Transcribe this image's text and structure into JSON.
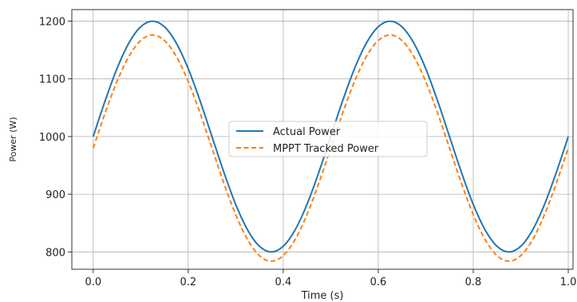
{
  "chart_data": {
    "type": "line",
    "title": "",
    "xlabel": "Time (s)",
    "ylabel": "Power (W)",
    "xlim": [
      -0.045,
      1.01
    ],
    "ylim": [
      770,
      1220
    ],
    "x_ticks": [
      "0.0",
      "0.2",
      "0.4",
      "0.6",
      "0.8",
      "1.0"
    ],
    "x_tick_values": [
      0.0,
      0.2,
      0.4,
      0.6,
      0.8,
      1.0
    ],
    "y_ticks": [
      "800",
      "900",
      "1000",
      "1100",
      "1200"
    ],
    "y_tick_values": [
      800,
      900,
      1000,
      1100,
      1200
    ],
    "grid": true,
    "legend_position": "center",
    "x": [
      0.0,
      0.025,
      0.05,
      0.075,
      0.1,
      0.125,
      0.15,
      0.175,
      0.2,
      0.225,
      0.25,
      0.275,
      0.3,
      0.325,
      0.35,
      0.375,
      0.4,
      0.425,
      0.45,
      0.475,
      0.5,
      0.525,
      0.55,
      0.575,
      0.6,
      0.625,
      0.65,
      0.675,
      0.7,
      0.725,
      0.75,
      0.775,
      0.8,
      0.825,
      0.85,
      0.875,
      0.9,
      0.925,
      0.95,
      0.975,
      1.0
    ],
    "series": [
      {
        "name": "Actual Power",
        "color": "#1f77b4",
        "dash": "solid",
        "values": [
          1000.0,
          1061.8,
          1117.6,
          1161.8,
          1190.2,
          1200.0,
          1190.2,
          1161.8,
          1117.6,
          1061.8,
          1000.0,
          938.2,
          882.4,
          838.2,
          809.8,
          800.0,
          809.8,
          838.2,
          882.4,
          938.2,
          1000.0,
          1061.8,
          1117.6,
          1161.8,
          1190.2,
          1200.0,
          1190.2,
          1161.8,
          1117.6,
          1061.8,
          1000.0,
          938.2,
          882.4,
          838.2,
          809.8,
          800.0,
          809.8,
          838.2,
          882.4,
          938.2,
          1000.0
        ]
      },
      {
        "name": "MPPT Tracked Power",
        "color": "#ff7f0e",
        "dash": "dashed",
        "values": [
          980.0,
          1040.6,
          1095.3,
          1138.6,
          1166.4,
          1176.0,
          1166.4,
          1138.6,
          1095.3,
          1040.6,
          980.0,
          919.4,
          864.7,
          821.4,
          793.6,
          784.0,
          793.6,
          821.4,
          864.7,
          919.4,
          980.0,
          1040.6,
          1095.3,
          1138.6,
          1166.4,
          1176.0,
          1166.4,
          1138.6,
          1095.3,
          1040.6,
          980.0,
          919.4,
          864.7,
          821.4,
          793.6,
          784.0,
          793.6,
          821.4,
          864.7,
          919.4,
          980.0
        ]
      }
    ]
  }
}
